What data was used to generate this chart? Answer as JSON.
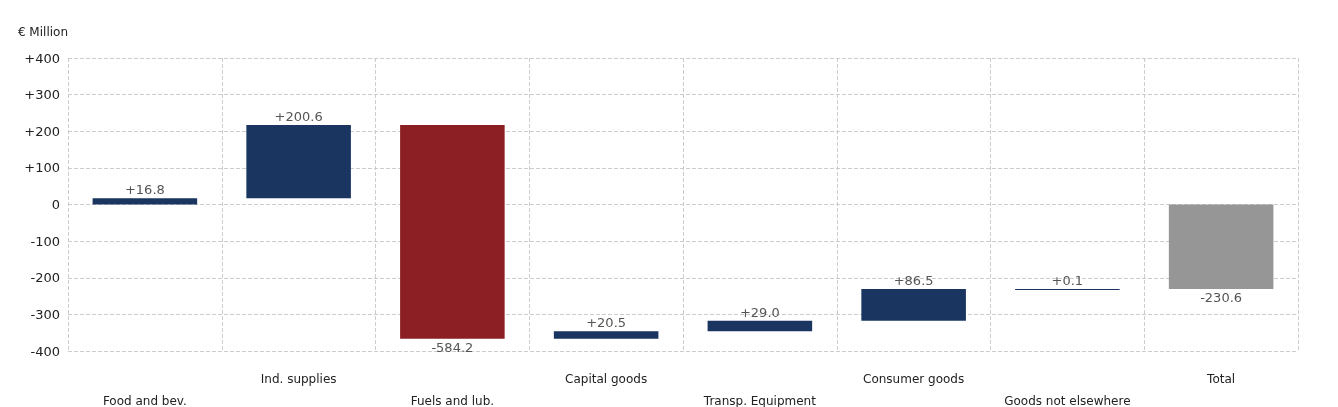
{
  "chart_data": {
    "type": "bar",
    "ylabel": "€ Million",
    "categories": [
      "Food and bev.",
      "Ind. supplies",
      "Fuels and lub.",
      "Capital goods",
      "Transp. Equipment",
      "Consumer goods",
      "Goods not elsewhere",
      "Total"
    ],
    "values": [
      16.8,
      200.6,
      -584.2,
      20.5,
      29.0,
      86.5,
      0.1,
      -230.6
    ],
    "base": [
      0,
      16.8,
      217.4,
      -366.8,
      -346.3,
      -317.3,
      -230.8,
      0
    ],
    "colors": [
      "#1a3560",
      "#1a3560",
      "#8b1f24",
      "#1a3560",
      "#1a3560",
      "#1a3560",
      "#1a3560",
      "#969696"
    ],
    "value_labels": [
      "+16.8",
      "+200.6",
      "-584.2",
      "+20.5",
      "+29.0",
      "+86.5",
      "+0.1",
      "-230.6"
    ],
    "ylim": [
      -400,
      400
    ],
    "yticks": [
      {
        "value": -400,
        "label": "-400"
      },
      {
        "value": -300,
        "label": "-300"
      },
      {
        "value": -200,
        "label": "-200"
      },
      {
        "value": -100,
        "label": "-100"
      },
      {
        "value": 0,
        "label": "0"
      },
      {
        "value": 100,
        "label": "+100"
      },
      {
        "value": 200,
        "label": "+200"
      },
      {
        "value": 300,
        "label": "+300"
      },
      {
        "value": 400,
        "label": "+400"
      }
    ],
    "grid": true
  }
}
